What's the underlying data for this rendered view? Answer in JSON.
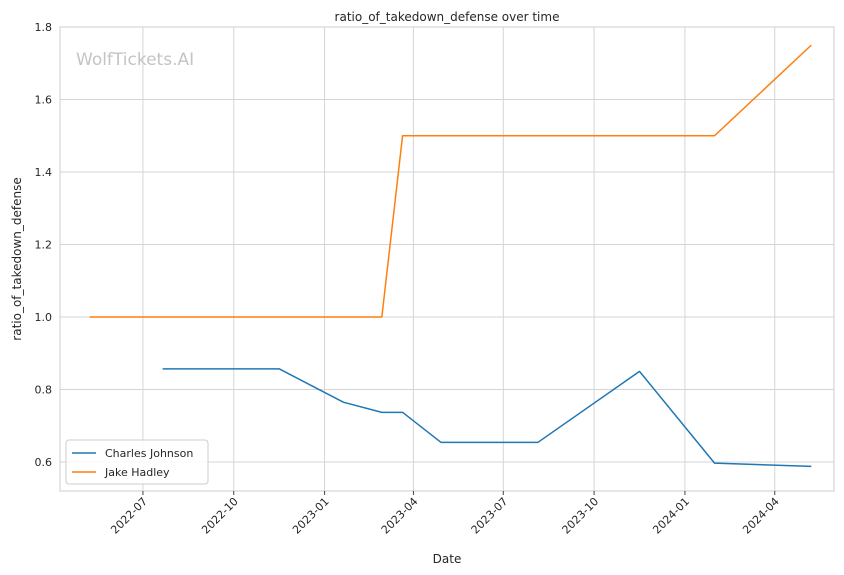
{
  "chart_data": {
    "type": "line",
    "title": "ratio_of_takedown_defense over time",
    "xlabel": "Date",
    "ylabel": "ratio_of_takedown_defense",
    "watermark": "WolfTickets.AI",
    "x_type": "date",
    "xlim": [
      "2022-04-08",
      "2024-05-31"
    ],
    "ylim": [
      0.52,
      1.8
    ],
    "x_ticks": [
      "2022-07-01",
      "2022-10-01",
      "2023-01-01",
      "2023-04-01",
      "2023-07-01",
      "2023-10-01",
      "2024-01-01",
      "2024-04-01"
    ],
    "x_tick_labels": [
      "2022-07",
      "2022-10",
      "2023-01",
      "2023-04",
      "2023-07",
      "2023-10",
      "2024-01",
      "2024-04"
    ],
    "y_ticks": [
      0.6,
      0.8,
      1.0,
      1.2,
      1.4,
      1.6,
      1.8
    ],
    "y_tick_labels": [
      "0.6",
      "0.8",
      "1.0",
      "1.2",
      "1.4",
      "1.6",
      "1.8"
    ],
    "grid": true,
    "legend_position": "lower-left",
    "series": [
      {
        "name": "Charles Johnson",
        "color": "#1f77b4",
        "points": [
          {
            "x": "2022-07-21",
            "y": 0.857
          },
          {
            "x": "2022-11-16",
            "y": 0.857
          },
          {
            "x": "2023-01-20",
            "y": 0.765
          },
          {
            "x": "2023-02-28",
            "y": 0.737
          },
          {
            "x": "2023-03-21",
            "y": 0.737
          },
          {
            "x": "2023-04-29",
            "y": 0.654
          },
          {
            "x": "2023-08-05",
            "y": 0.654
          },
          {
            "x": "2023-11-16",
            "y": 0.85
          },
          {
            "x": "2024-01-31",
            "y": 0.597
          },
          {
            "x": "2024-05-08",
            "y": 0.588
          }
        ]
      },
      {
        "name": "Jake Hadley",
        "color": "#ff7f0e",
        "points": [
          {
            "x": "2022-05-08",
            "y": 1.0
          },
          {
            "x": "2023-02-28",
            "y": 1.0
          },
          {
            "x": "2023-03-21",
            "y": 1.5
          },
          {
            "x": "2024-01-31",
            "y": 1.5
          },
          {
            "x": "2024-05-08",
            "y": 1.75
          }
        ]
      }
    ]
  }
}
